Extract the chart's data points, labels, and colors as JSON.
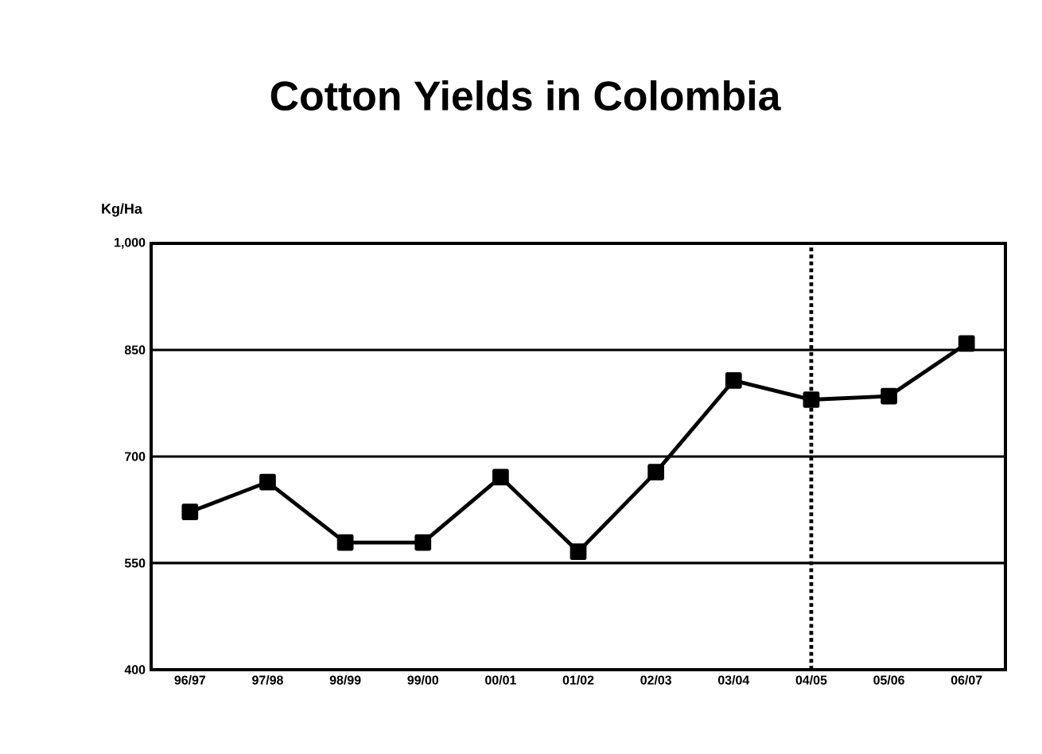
{
  "chart_data": {
    "type": "line",
    "title": "Cotton Yields in Colombia",
    "ylabel": "Kg/Ha",
    "categories": [
      "96/97",
      "97/98",
      "98/99",
      "99/00",
      "00/01",
      "01/02",
      "02/03",
      "03/04",
      "04/05",
      "05/06",
      "06/07"
    ],
    "series": [
      {
        "color": "#000000",
        "values": [
          622,
          664,
          579,
          579,
          671,
          566,
          678,
          807,
          780,
          785,
          859
        ]
      }
    ],
    "ylim": [
      400,
      1000
    ],
    "yticks": [
      400,
      550,
      700,
      850,
      {
        "value": 1000,
        "label": "1,000"
      }
    ],
    "grid": "y",
    "marker": "square",
    "line_style": "solid",
    "ref_lines": [
      {
        "axis": "x",
        "value": "04/05",
        "line_style": "dotted",
        "color": "#000000"
      }
    ]
  }
}
